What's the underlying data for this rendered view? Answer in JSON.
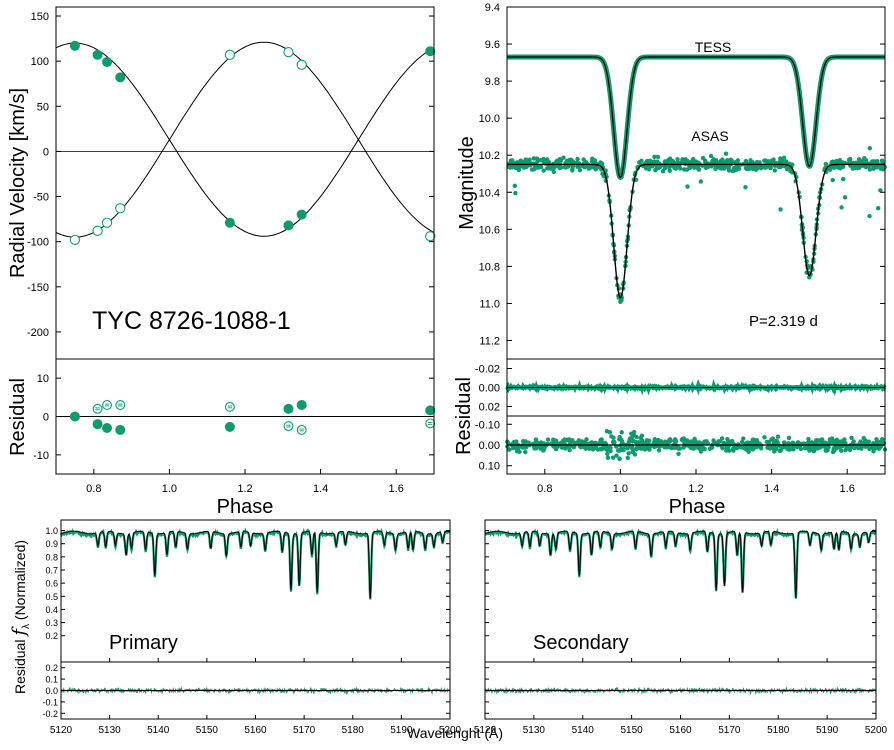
{
  "colors": {
    "accent": "#0f9a6e",
    "model": "#000000"
  },
  "chart_data": [
    {
      "id": "rv",
      "type": "scatter",
      "ylabel": "Radial Velocity [km/s]",
      "annotation": "TYC 8726-1088-1",
      "xlim": [
        0.7,
        1.7
      ],
      "ylim": [
        -230,
        160
      ],
      "y_ticks": [
        150,
        100,
        50,
        0,
        -50,
        -100,
        -150,
        -200
      ],
      "series": [
        {
          "marker": "filled",
          "x": [
            0.75,
            0.81,
            0.835,
            0.87,
            1.16,
            1.315,
            1.35,
            1.69
          ],
          "y": [
            117,
            107,
            99,
            82,
            -79,
            -82,
            -70,
            111
          ]
        },
        {
          "marker": "open",
          "x": [
            0.75,
            0.81,
            0.835,
            0.87,
            1.16,
            1.315,
            1.35,
            1.69
          ],
          "y": [
            -98,
            -88,
            -79,
            -63,
            107,
            110,
            96,
            -94
          ]
        }
      ],
      "model": {
        "gamma": 13,
        "K1": 107,
        "K2": 108,
        "phase_zero": 1.25
      }
    },
    {
      "id": "rv_residual",
      "type": "scatter",
      "ylabel": "Residual",
      "xlabel": "Phase",
      "xlim": [
        0.7,
        1.7
      ],
      "ylim": [
        -15,
        15
      ],
      "y_ticks": [
        10,
        0,
        -10
      ],
      "x_ticks": [
        "0.8",
        "1.0",
        "1.2",
        "1.4",
        "1.6"
      ],
      "series": [
        {
          "marker": "filled",
          "x": [
            0.75,
            0.81,
            0.835,
            0.87,
            1.16,
            1.315,
            1.35,
            1.69
          ],
          "y": [
            0,
            -2,
            -3,
            -3.5,
            -2.7,
            2,
            3,
            1.6
          ]
        },
        {
          "marker": "open",
          "x": [
            0.81,
            0.835,
            0.87,
            1.16,
            1.315,
            1.35,
            1.69
          ],
          "y": [
            2,
            3,
            3,
            2.5,
            -2.5,
            -3.5,
            -1.8
          ]
        }
      ]
    },
    {
      "id": "lc",
      "type": "scatter",
      "ylabel": "Magnitude",
      "xlim": [
        0.7,
        1.7
      ],
      "ylim": [
        9.4,
        11.3
      ],
      "y_ticks": [
        "9.4",
        "9.6",
        "9.8",
        "10.0",
        "10.2",
        "10.4",
        "10.6",
        "10.8",
        "11.0",
        "11.2"
      ],
      "annotations": [
        "TESS",
        "ASAS",
        "P=2.319 d"
      ],
      "series": [
        {
          "name": "TESS",
          "base": 9.67,
          "depth_primary": 0.65,
          "depth_secondary": 0.59,
          "width": 0.025
        },
        {
          "name": "ASAS",
          "base": 10.25,
          "depth_primary": 0.72,
          "depth_secondary": 0.6,
          "width": 0.025,
          "scatter": 0.04
        }
      ]
    },
    {
      "id": "tess_residual",
      "type": "scatter",
      "ylabel": "Residual",
      "ylim": [
        -0.03,
        0.03
      ],
      "y_ticks": [
        "-0.02",
        "0.00",
        "0.02"
      ]
    },
    {
      "id": "asas_residual",
      "type": "scatter",
      "xlabel": "Phase",
      "xlim": [
        0.7,
        1.7
      ],
      "ylim": [
        -0.14,
        0.14
      ],
      "y_ticks": [
        "-0.10",
        "0.00",
        "0.10"
      ],
      "x_ticks": [
        "0.8",
        "1.0",
        "1.2",
        "1.4",
        "1.6"
      ]
    },
    {
      "id": "spectra",
      "type": "line",
      "ylabel": "Residual",
      "ylabel_main": "(Normalized)",
      "ylabel_symbol": "f",
      "ylabel_sub": "λ",
      "xlabel": "Wavelenght (Å)",
      "xlim": [
        5120,
        5200
      ],
      "x_ticks": [
        "5120",
        "5130",
        "5140",
        "5150",
        "5160",
        "5170",
        "5180",
        "5190",
        "5200"
      ],
      "flux_ylim": [
        0,
        1.05
      ],
      "flux_ticks": [
        "1.0",
        "0.9",
        "0.8",
        "0.7",
        "0.6",
        "0.5",
        "0.4",
        "0.3",
        "0.2"
      ],
      "res_ylim": [
        -0.25,
        0.25
      ],
      "res_ticks": [
        "0.2",
        "0.1",
        "0.0",
        "-0.1",
        "-0.2"
      ],
      "panels": [
        "Primary",
        "Secondary"
      ],
      "lines": [
        {
          "w": 5127.6,
          "d": 0.1
        },
        {
          "w": 5129.2,
          "d": 0.12
        },
        {
          "w": 5131.2,
          "d": 0.1
        },
        {
          "w": 5133.4,
          "d": 0.16
        },
        {
          "w": 5134.5,
          "d": 0.12
        },
        {
          "w": 5137.4,
          "d": 0.14
        },
        {
          "w": 5139.3,
          "d": 0.32
        },
        {
          "w": 5141.8,
          "d": 0.17
        },
        {
          "w": 5143.6,
          "d": 0.12
        },
        {
          "w": 5146.0,
          "d": 0.12
        },
        {
          "w": 5150.8,
          "d": 0.13
        },
        {
          "w": 5154.0,
          "d": 0.17
        },
        {
          "w": 5157.0,
          "d": 0.12
        },
        {
          "w": 5159.0,
          "d": 0.1
        },
        {
          "w": 5162.0,
          "d": 0.13
        },
        {
          "w": 5165.5,
          "d": 0.15
        },
        {
          "w": 5167.3,
          "d": 0.43
        },
        {
          "w": 5169.0,
          "d": 0.4
        },
        {
          "w": 5171.6,
          "d": 0.18
        },
        {
          "w": 5172.7,
          "d": 0.46
        },
        {
          "w": 5176.6,
          "d": 0.1
        },
        {
          "w": 5178.5,
          "d": 0.1
        },
        {
          "w": 5183.6,
          "d": 0.5
        },
        {
          "w": 5186.5,
          "d": 0.1
        },
        {
          "w": 5188.8,
          "d": 0.12
        },
        {
          "w": 5191.4,
          "d": 0.13
        },
        {
          "w": 5192.4,
          "d": 0.14
        },
        {
          "w": 5194.9,
          "d": 0.12
        },
        {
          "w": 5196.7,
          "d": 0.1
        },
        {
          "w": 5198.5,
          "d": 0.08
        }
      ]
    }
  ]
}
